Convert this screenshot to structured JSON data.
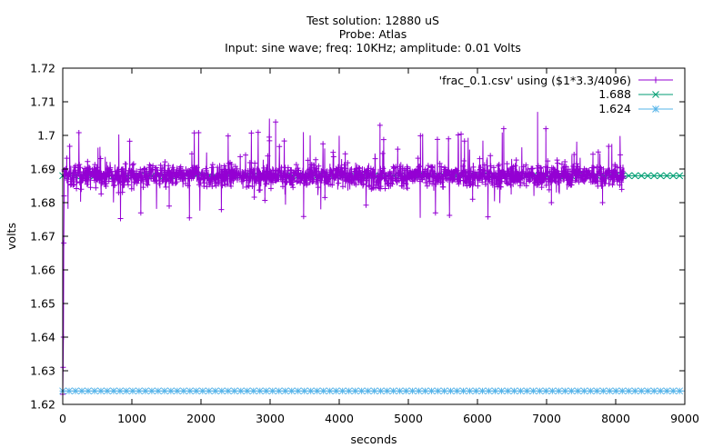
{
  "chart_data": {
    "type": "line",
    "title_lines": [
      "Test solution: 12880 uS",
      "Probe: Atlas",
      "Input: sine wave; freq: 10KHz; amplitude: 0.01 Volts"
    ],
    "xlabel": "seconds",
    "ylabel": "volts",
    "xlim": [
      0,
      9000
    ],
    "ylim": [
      1.62,
      1.72
    ],
    "x_ticks": [
      0,
      1000,
      2000,
      3000,
      4000,
      5000,
      6000,
      7000,
      8000,
      9000
    ],
    "x_tick_labels": [
      "0",
      "1000",
      "2000",
      "3000",
      "4000",
      "5000",
      "6000",
      "7000",
      "8000",
      "9000"
    ],
    "y_ticks": [
      1.62,
      1.63,
      1.64,
      1.65,
      1.66,
      1.67,
      1.68,
      1.69,
      1.7,
      1.71,
      1.72
    ],
    "y_tick_labels": [
      "1.62",
      "1.63",
      "1.64",
      "1.65",
      "1.66",
      "1.67",
      "1.68",
      "1.69",
      "1.7",
      "1.71",
      "1.72"
    ],
    "grid": false,
    "legend_position": "top-right",
    "series": [
      {
        "name": "'frac_0.1.csv' using ($1*3.3/4096)",
        "kind": "noisy-data",
        "color": "#9400d3",
        "marker": "plus",
        "x_start": 0,
        "x_end": 8120,
        "baseline": 1.688,
        "typical_band": [
          1.685,
          1.691
        ],
        "startup_dip": [
          {
            "x": 0,
            "y": 1.623
          },
          {
            "x": 5,
            "y": 1.631
          },
          {
            "x": 10,
            "y": 1.64
          },
          {
            "x": 15,
            "y": 1.668
          },
          {
            "x": 20,
            "y": 1.682
          }
        ],
        "notable_points": [
          {
            "x": 2,
            "y": 1.628
          },
          {
            "x": 3,
            "y": 1.629
          },
          {
            "x": 1540,
            "y": 1.679
          },
          {
            "x": 2990,
            "y": 1.705
          },
          {
            "x": 3080,
            "y": 1.704
          },
          {
            "x": 4590,
            "y": 1.703
          },
          {
            "x": 6870,
            "y": 1.707
          },
          {
            "x": 6990,
            "y": 1.702
          },
          {
            "x": 7070,
            "y": 1.68
          },
          {
            "x": 7810,
            "y": 1.68
          },
          {
            "x": 6380,
            "y": 1.702
          },
          {
            "x": 5930,
            "y": 1.681
          }
        ]
      },
      {
        "name": "1.688",
        "kind": "constant",
        "color": "#009e73",
        "marker": "cross",
        "value": 1.688
      },
      {
        "name": "1.624",
        "kind": "constant",
        "color": "#56b4e9",
        "marker": "star",
        "value": 1.624
      }
    ]
  }
}
